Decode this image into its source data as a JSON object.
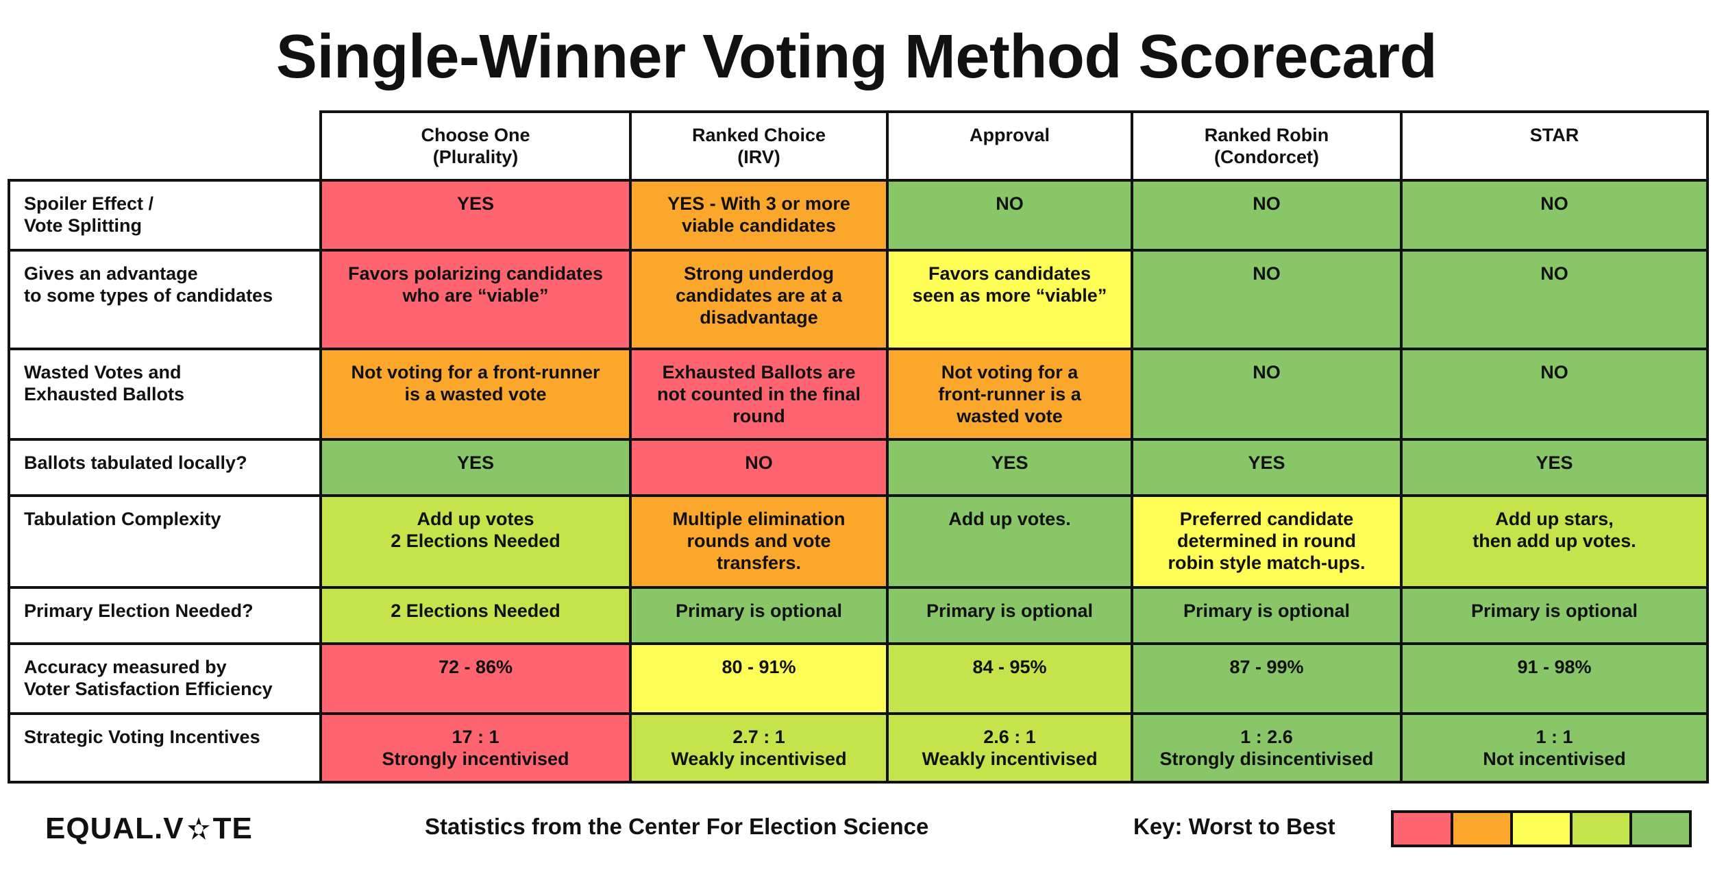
{
  "title": "Single-Winner Voting Method Scorecard",
  "columns": [
    [
      "Choose One",
      "(Plurality)"
    ],
    [
      "Ranked Choice",
      "(IRV)"
    ],
    [
      "Approval",
      ""
    ],
    [
      "Ranked Robin",
      "(Condorcet)"
    ],
    [
      "STAR",
      ""
    ]
  ],
  "rows": [
    {
      "label": [
        "Spoiler Effect /",
        "Vote Splitting"
      ],
      "cells": [
        {
          "text": [
            "YES"
          ],
          "rating": 1
        },
        {
          "text": [
            "YES - With 3 or more",
            "viable candidates"
          ],
          "rating": 2
        },
        {
          "text": [
            "NO"
          ],
          "rating": 5
        },
        {
          "text": [
            "NO"
          ],
          "rating": 5
        },
        {
          "text": [
            "NO"
          ],
          "rating": 5
        }
      ]
    },
    {
      "label": [
        "Gives an advantage",
        "to some types of candidates"
      ],
      "cells": [
        {
          "text": [
            "Favors polarizing candidates",
            "who are “viable”"
          ],
          "rating": 1
        },
        {
          "text": [
            "Strong underdog",
            "candidates are at a",
            "disadvantage"
          ],
          "rating": 2
        },
        {
          "text": [
            "Favors candidates",
            "seen as more “viable”"
          ],
          "rating": 3
        },
        {
          "text": [
            "NO"
          ],
          "rating": 5
        },
        {
          "text": [
            "NO"
          ],
          "rating": 5
        }
      ]
    },
    {
      "label": [
        "Wasted Votes and",
        "Exhausted Ballots"
      ],
      "cells": [
        {
          "text": [
            "Not voting for a front-runner",
            "is a wasted vote"
          ],
          "rating": 2
        },
        {
          "text": [
            "Exhausted Ballots are",
            "not counted in the final",
            "round"
          ],
          "rating": 1
        },
        {
          "text": [
            "Not voting for a",
            "front-runner is  a",
            "wasted vote"
          ],
          "rating": 2
        },
        {
          "text": [
            "NO"
          ],
          "rating": 5
        },
        {
          "text": [
            "NO"
          ],
          "rating": 5
        }
      ]
    },
    {
      "label": [
        "Ballots tabulated locally?"
      ],
      "cells": [
        {
          "text": [
            "YES"
          ],
          "rating": 5
        },
        {
          "text": [
            "NO"
          ],
          "rating": 1
        },
        {
          "text": [
            "YES"
          ],
          "rating": 5
        },
        {
          "text": [
            "YES"
          ],
          "rating": 5
        },
        {
          "text": [
            "YES"
          ],
          "rating": 5
        }
      ]
    },
    {
      "label": [
        "Tabulation Complexity"
      ],
      "cells": [
        {
          "text": [
            "Add up votes",
            "2 Elections Needed"
          ],
          "rating": 4
        },
        {
          "text": [
            "Multiple elimination",
            "rounds and vote",
            "transfers."
          ],
          "rating": 2
        },
        {
          "text": [
            "Add up votes."
          ],
          "rating": 5
        },
        {
          "text": [
            "Preferred candidate",
            "determined in round",
            "robin style match-ups."
          ],
          "rating": 3
        },
        {
          "text": [
            "Add up stars,",
            "then add up votes."
          ],
          "rating": 4
        }
      ]
    },
    {
      "label": [
        "Primary Election Needed?"
      ],
      "cells": [
        {
          "text": [
            "2 Elections Needed"
          ],
          "rating": 4
        },
        {
          "text": [
            "Primary is optional"
          ],
          "rating": 5
        },
        {
          "text": [
            "Primary is optional"
          ],
          "rating": 5
        },
        {
          "text": [
            "Primary is optional"
          ],
          "rating": 5
        },
        {
          "text": [
            "Primary is optional"
          ],
          "rating": 5
        }
      ]
    },
    {
      "label": [
        "Accuracy measured by",
        "Voter Satisfaction Efficiency"
      ],
      "cells": [
        {
          "text": [
            "72 - 86%"
          ],
          "rating": 1
        },
        {
          "text": [
            "80 - 91%"
          ],
          "rating": 3
        },
        {
          "text": [
            "84 - 95%"
          ],
          "rating": 4
        },
        {
          "text": [
            "87 - 99%"
          ],
          "rating": 5
        },
        {
          "text": [
            "91 - 98%"
          ],
          "rating": 5
        }
      ]
    },
    {
      "label": [
        "Strategic Voting Incentives"
      ],
      "cells": [
        {
          "text": [
            "17 : 1",
            "Strongly incentivised"
          ],
          "rating": 1
        },
        {
          "text": [
            "2.7 : 1",
            "Weakly incentivised"
          ],
          "rating": 4
        },
        {
          "text": [
            "2.6 : 1",
            "Weakly incentivised"
          ],
          "rating": 4
        },
        {
          "text": [
            "1 : 2.6",
            "Strongly disincentivised"
          ],
          "rating": 5
        },
        {
          "text": [
            "1 : 1",
            "Not incentivised"
          ],
          "rating": 5
        }
      ]
    }
  ],
  "footer": {
    "logo_left": "EQUAL.V",
    "logo_right": "TE",
    "stats": "Statistics from the Center For Election Science",
    "key_label": "Key:  Worst to Best"
  },
  "key_colors": [
    "#fe6570",
    "#fba72c",
    "#fefd55",
    "#c5e34a",
    "#88c668"
  ]
}
